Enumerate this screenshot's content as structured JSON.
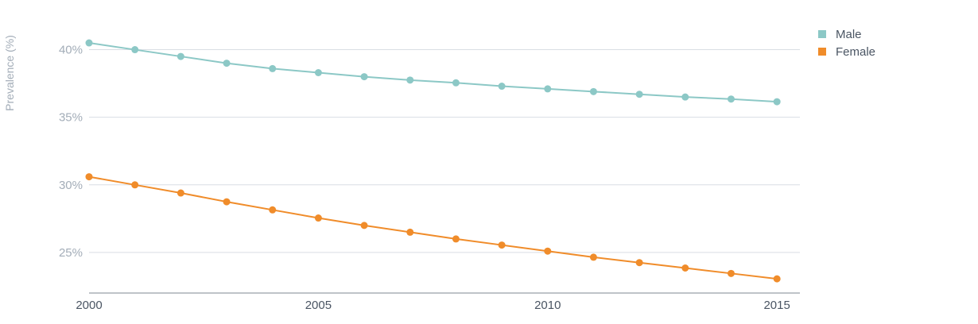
{
  "chart_data": {
    "type": "line",
    "xlabel": "",
    "ylabel": "Prevalence (%)",
    "x": [
      2000,
      2001,
      2002,
      2003,
      2004,
      2005,
      2006,
      2007,
      2008,
      2009,
      2010,
      2011,
      2012,
      2013,
      2014,
      2015
    ],
    "xlim": [
      2000,
      2015.5
    ],
    "ylim": [
      22,
      42.5
    ],
    "x_ticks": [
      2000,
      2005,
      2010,
      2015
    ],
    "x_tick_labels": [
      "2000",
      "2005",
      "2010",
      "2015"
    ],
    "y_ticks": [
      25,
      30,
      35,
      40
    ],
    "y_tick_labels": [
      "25%",
      "30%",
      "35%",
      "40%"
    ],
    "grid": true,
    "legend_position": "top-right",
    "series": [
      {
        "name": "Male",
        "color": "#8cc8c6",
        "values": [
          40.5,
          40.0,
          39.5,
          39.0,
          38.6,
          38.3,
          38.0,
          37.75,
          37.55,
          37.3,
          37.1,
          36.9,
          36.7,
          36.5,
          36.35,
          36.15
        ]
      },
      {
        "name": "Female",
        "color": "#f08c2a",
        "values": [
          30.6,
          30.0,
          29.4,
          28.75,
          28.15,
          27.55,
          27.0,
          26.5,
          26.0,
          25.55,
          25.1,
          24.65,
          24.25,
          23.85,
          23.45,
          23.05
        ]
      }
    ]
  }
}
